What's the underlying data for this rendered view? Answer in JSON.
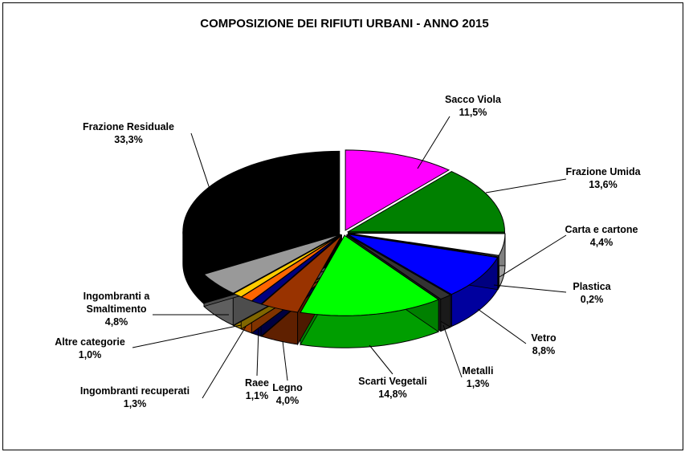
{
  "chart_data": {
    "type": "pie",
    "title": "COMPOSIZIONE DEI RIFIUTI URBANI - ANNO 2015",
    "unit": "%",
    "slices": [
      {
        "label": "Sacco Viola",
        "value": 11.5,
        "pct": "11,5%",
        "color": "#ff00ff"
      },
      {
        "label": "Frazione Umida",
        "value": 13.6,
        "pct": "13,6%",
        "color": "#008000"
      },
      {
        "label": "Carta e cartone",
        "value": 4.4,
        "pct": "4,4%",
        "color": "#ffffff"
      },
      {
        "label": "Plastica",
        "value": 0.2,
        "pct": "0,2%",
        "color": "#c0c0c0"
      },
      {
        "label": "Vetro",
        "value": 8.8,
        "pct": "8,8%",
        "color": "#0000ff"
      },
      {
        "label": "Metalli",
        "value": 1.3,
        "pct": "1,3%",
        "color": "#333333"
      },
      {
        "label": "Scarti Vegetali",
        "value": 14.8,
        "pct": "14,8%",
        "color": "#00ff00"
      },
      {
        "label": "Legno",
        "value": 4.0,
        "pct": "4,0%",
        "color": "#993300"
      },
      {
        "label": "Raee",
        "value": 1.1,
        "pct": "1,1%",
        "color": "#000080"
      },
      {
        "label": "Ingombranti recuperati",
        "value": 1.3,
        "pct": "1,3%",
        "color": "#ff6600"
      },
      {
        "label": "Altre categorie",
        "value": 1.0,
        "pct": "1,0%",
        "color": "#ffcc00"
      },
      {
        "label": "Ingombranti a Smaltimento",
        "value": 4.8,
        "pct": "4,8%",
        "color": "#999999"
      },
      {
        "label": "Frazione Residuale",
        "value": 33.3,
        "pct": "33,3%",
        "color": "#000000"
      }
    ]
  }
}
